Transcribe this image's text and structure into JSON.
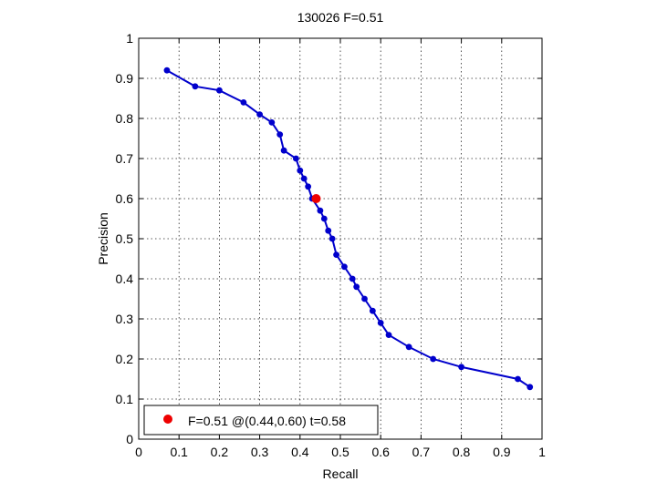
{
  "chart_data": {
    "type": "line",
    "title": "130026 F=0.51",
    "xlabel": "Recall",
    "ylabel": "Precision",
    "xlim": [
      0,
      1
    ],
    "ylim": [
      0,
      1
    ],
    "xticks": [
      "0",
      "0.1",
      "0.2",
      "0.3",
      "0.4",
      "0.5",
      "0.6",
      "0.7",
      "0.8",
      "0.9",
      "1"
    ],
    "yticks": [
      "0",
      "0.1",
      "0.2",
      "0.3",
      "0.4",
      "0.5",
      "0.6",
      "0.7",
      "0.8",
      "0.9",
      "1"
    ],
    "grid": true,
    "legend_position": "bottom-left",
    "series": [
      {
        "color": "#0000cc",
        "x": [
          0.07,
          0.14,
          0.2,
          0.26,
          0.3,
          0.33,
          0.35,
          0.36,
          0.39,
          0.4,
          0.41,
          0.42,
          0.43,
          0.45,
          0.46,
          0.47,
          0.48,
          0.49,
          0.51,
          0.53,
          0.54,
          0.56,
          0.58,
          0.6,
          0.62,
          0.67,
          0.73,
          0.8,
          0.94,
          0.97
        ],
        "y": [
          0.92,
          0.88,
          0.87,
          0.84,
          0.81,
          0.79,
          0.76,
          0.72,
          0.7,
          0.67,
          0.65,
          0.63,
          0.6,
          0.57,
          0.55,
          0.52,
          0.5,
          0.46,
          0.43,
          0.4,
          0.38,
          0.35,
          0.32,
          0.29,
          0.26,
          0.23,
          0.2,
          0.18,
          0.15,
          0.13
        ]
      }
    ],
    "best_point": {
      "x": 0.44,
      "y": 0.6,
      "color": "#ee0000",
      "label": "F=0.51 @(0.44,0.60) t=0.58"
    }
  }
}
